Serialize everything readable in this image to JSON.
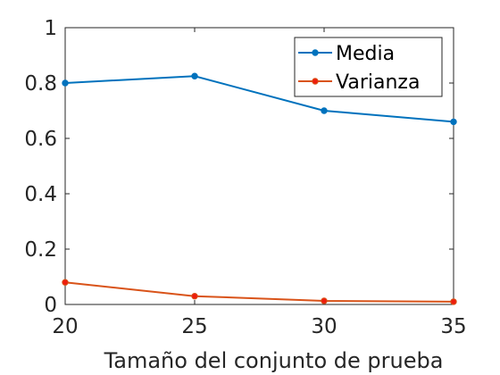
{
  "chart_data": {
    "type": "line",
    "title": "",
    "xlabel": "Tamaño del conjunto de prueba",
    "ylabel": "",
    "x": [
      20,
      25,
      30,
      35
    ],
    "xlim": [
      20,
      35
    ],
    "ylim": [
      0,
      1
    ],
    "xticks": [
      20,
      25,
      30,
      35
    ],
    "yticks": [
      0,
      0.2,
      0.4,
      0.6,
      0.8,
      1
    ],
    "xtick_labels": [
      "20",
      "25",
      "30",
      "35"
    ],
    "ytick_labels": [
      "0",
      "0.2",
      "0.4",
      "0.6",
      "0.8",
      "1"
    ],
    "grid": false,
    "legend_position": "top-right",
    "series": [
      {
        "name": "Media",
        "values": [
          0.8,
          0.825,
          0.7,
          0.66
        ],
        "color": "#0072BD",
        "marker_color": "#0072BD"
      },
      {
        "name": "Varianza",
        "values": [
          0.08,
          0.03,
          0.013,
          0.01
        ],
        "color": "#D95319",
        "marker_color": "#EE1C0E"
      }
    ]
  }
}
